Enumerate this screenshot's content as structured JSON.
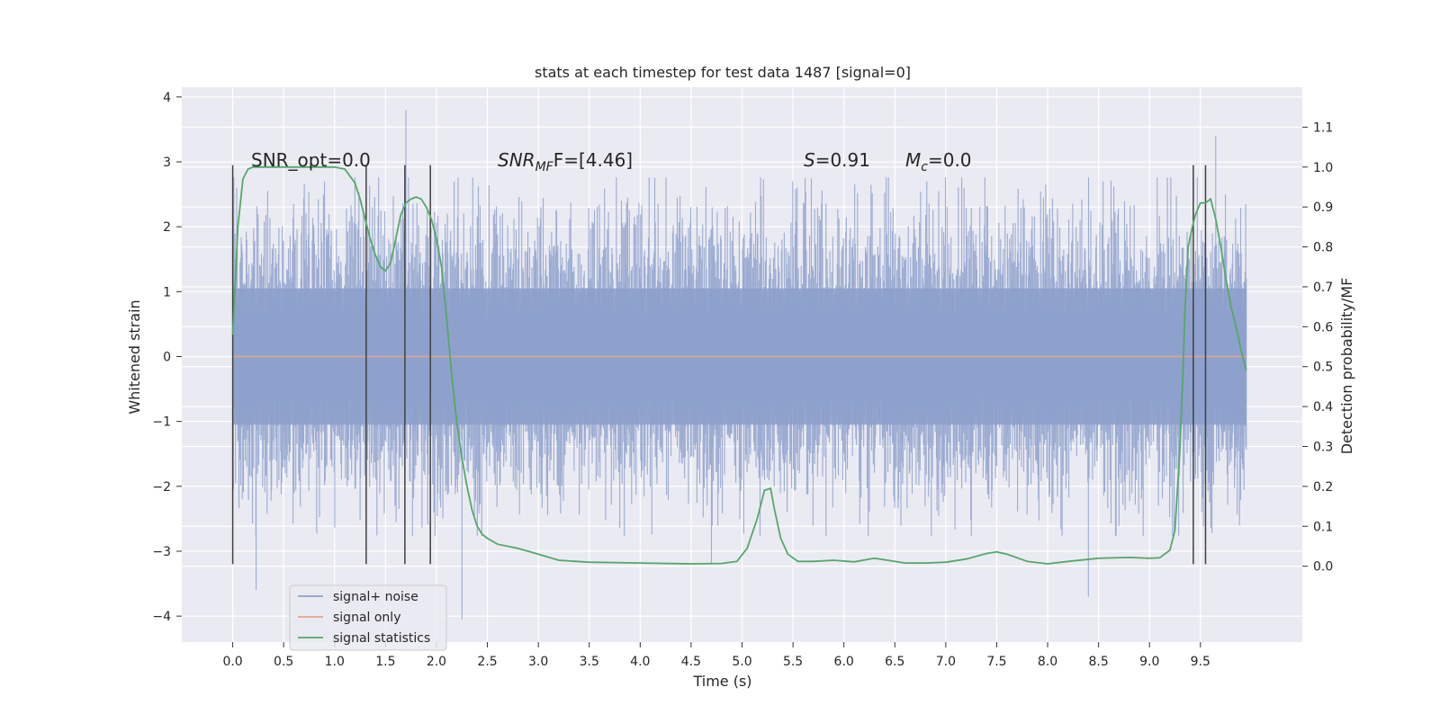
{
  "chart_data": {
    "type": "line",
    "title": "stats at each timestep for test data 1487 [signal=0]",
    "xlabel": "Time (s)",
    "ylabel_left": "Whitened strain",
    "ylabel_right": "Detection probability/MF",
    "xlim": [
      -0.5,
      10.5
    ],
    "ylim_left": [
      -4.4,
      4.15
    ],
    "ylim_right": [
      -0.19,
      1.2
    ],
    "grid": true,
    "x_ticks": [
      "0.0",
      "0.5",
      "1.0",
      "1.5",
      "2.0",
      "2.5",
      "3.0",
      "3.5",
      "4.0",
      "4.5",
      "5.0",
      "5.5",
      "6.0",
      "6.5",
      "7.0",
      "7.5",
      "8.0",
      "8.5",
      "9.0",
      "9.5"
    ],
    "y_ticks_left": [
      "4",
      "3",
      "2",
      "1",
      "0",
      "−1",
      "−2",
      "−3",
      "−4"
    ],
    "y_ticks_right": [
      "1.1",
      "1.0",
      "0.9",
      "0.8",
      "0.7",
      "0.6",
      "0.5",
      "0.4",
      "0.3",
      "0.2",
      "0.1",
      "0.0"
    ],
    "legend_position": "lower-left",
    "annotations": {
      "snr_opt": "SNR_opt=0.0",
      "snr_mf_base": "SNR",
      "snr_mf_sub": "MF",
      "snr_mf_rest": "F=[4.46]",
      "s_sym": "S",
      "s_rest": "=0.91",
      "mc_base": "M",
      "mc_sub": "c",
      "mc_rest": "=0.0"
    },
    "series": [
      {
        "name": "signal+ noise",
        "axis": "left",
        "color": "#8da0cb",
        "description_values": "whitened noise, roughly within ±2.5 with spikes to ±4",
        "x_range": [
          0.0,
          9.95
        ],
        "envelope": {
          "typical_abs": 2.4,
          "max": 3.8,
          "min": -4.05
        },
        "spikes": [
          [
            1.7,
            3.8
          ],
          [
            2.25,
            -4.05
          ],
          [
            8.4,
            -3.7
          ],
          [
            0.23,
            -3.6
          ],
          [
            9.65,
            3.4
          ],
          [
            4.7,
            -3.2
          ]
        ]
      },
      {
        "name": "signal only",
        "axis": "left",
        "color": "#e5a58a",
        "x": [
          0.0,
          9.95
        ],
        "y": [
          0.0,
          0.0
        ]
      },
      {
        "name": "signal statistics",
        "axis": "right",
        "color": "#55a868",
        "x": [
          0.0,
          0.05,
          0.1,
          0.15,
          0.2,
          0.3,
          0.5,
          0.7,
          0.9,
          1.0,
          1.1,
          1.2,
          1.25,
          1.3,
          1.35,
          1.4,
          1.45,
          1.5,
          1.55,
          1.6,
          1.65,
          1.7,
          1.75,
          1.8,
          1.85,
          1.9,
          1.95,
          2.0,
          2.05,
          2.1,
          2.15,
          2.2,
          2.25,
          2.3,
          2.35,
          2.4,
          2.45,
          2.5,
          2.6,
          2.8,
          3.0,
          3.2,
          3.5,
          4.0,
          4.5,
          4.8,
          4.95,
          5.05,
          5.15,
          5.22,
          5.28,
          5.32,
          5.38,
          5.45,
          5.55,
          5.7,
          5.9,
          6.1,
          6.3,
          6.45,
          6.6,
          6.8,
          7.0,
          7.2,
          7.4,
          7.5,
          7.6,
          7.8,
          8.0,
          8.2,
          8.5,
          8.8,
          9.0,
          9.1,
          9.2,
          9.25,
          9.3,
          9.33,
          9.35,
          9.38,
          9.42,
          9.45,
          9.5,
          9.55,
          9.6,
          9.65,
          9.7,
          9.75,
          9.8,
          9.85,
          9.9,
          9.95
        ],
        "y": [
          0.58,
          0.85,
          0.97,
          0.995,
          1.0,
          1.0,
          1.0,
          1.0,
          1.0,
          1.0,
          0.995,
          0.96,
          0.92,
          0.87,
          0.82,
          0.78,
          0.75,
          0.74,
          0.76,
          0.82,
          0.88,
          0.91,
          0.92,
          0.925,
          0.92,
          0.9,
          0.87,
          0.82,
          0.75,
          0.62,
          0.48,
          0.36,
          0.27,
          0.2,
          0.14,
          0.1,
          0.08,
          0.07,
          0.055,
          0.045,
          0.03,
          0.015,
          0.01,
          0.008,
          0.006,
          0.007,
          0.012,
          0.045,
          0.12,
          0.19,
          0.195,
          0.14,
          0.07,
          0.03,
          0.012,
          0.012,
          0.015,
          0.011,
          0.02,
          0.014,
          0.008,
          0.008,
          0.01,
          0.018,
          0.032,
          0.036,
          0.03,
          0.012,
          0.006,
          0.012,
          0.02,
          0.022,
          0.02,
          0.021,
          0.04,
          0.09,
          0.3,
          0.5,
          0.65,
          0.8,
          0.85,
          0.88,
          0.91,
          0.91,
          0.92,
          0.87,
          0.8,
          0.72,
          0.65,
          0.6,
          0.54,
          0.49
        ]
      }
    ],
    "vertical_markers_x": [
      0.0,
      1.31,
      1.69,
      1.94,
      9.43,
      9.55
    ],
    "marker_color": "#404040"
  }
}
